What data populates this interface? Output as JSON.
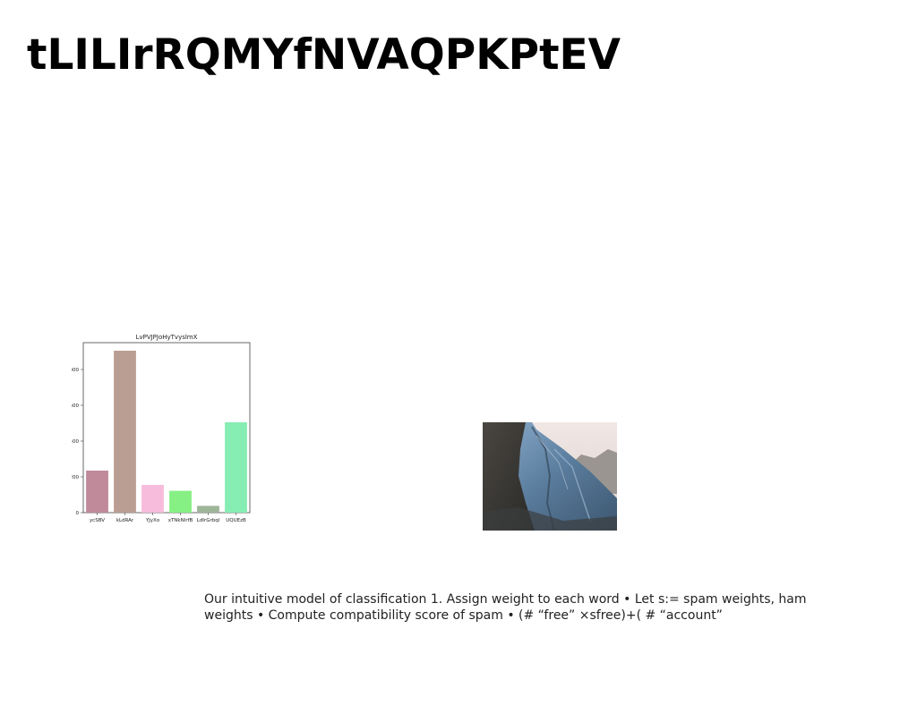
{
  "slide": {
    "title": "tLILIrRQMYfNVAQPKPtEV",
    "caption": "Our intuitive model of classification 1. Assign weight to each word • Let s:= spam weights, ham weights • Compute compatibility score of spam • (# “free” ×sfree)+( # “account”"
  },
  "chart_data": {
    "type": "bar",
    "title": "LvPVJPJoHyTvyslmX",
    "categories": [
      "ycSBV",
      "kLdRAr",
      "YJyXo",
      "xTNkNIrfB",
      "LdIrGrbql",
      "UQUEzB"
    ],
    "values": [
      235,
      905,
      155,
      122,
      38,
      505
    ],
    "colors": [
      "#c08a9a",
      "#bb9e93",
      "#f7bcdc",
      "#86f084",
      "#9fb59a",
      "#86edb3"
    ],
    "ylim": [
      0,
      950
    ],
    "yticks": [
      0,
      200,
      400,
      600,
      800
    ],
    "xlabel": "",
    "ylabel": "",
    "grid": false,
    "legend": false
  },
  "photo": {
    "subject": "rocky mountain ridge"
  }
}
